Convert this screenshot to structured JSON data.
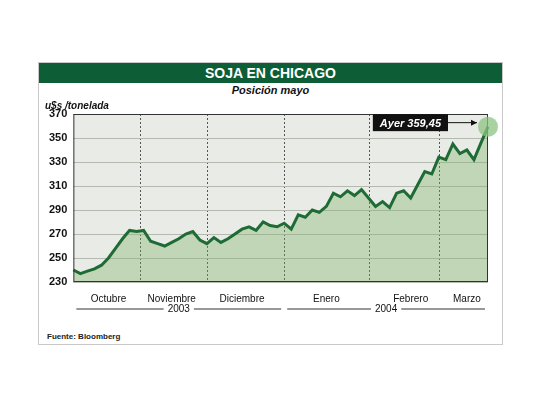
{
  "chart_data": {
    "type": "line",
    "title": "SOJA EN CHICAGO",
    "subtitle": "Posición mayo",
    "y_label": "u$s /tonelada",
    "source": "Fuente: Bloomberg",
    "categories": [
      null,
      null,
      null,
      null,
      null,
      "Octubre",
      null,
      null,
      null,
      null,
      null,
      null,
      null,
      null,
      "Noviembre",
      null,
      null,
      null,
      null,
      null,
      null,
      null,
      null,
      null,
      "Diciembre",
      null,
      null,
      null,
      null,
      null,
      null,
      null,
      null,
      null,
      null,
      null,
      "Enero",
      null,
      null,
      null,
      null,
      null,
      null,
      null,
      null,
      null,
      null,
      null,
      "Febrero",
      null,
      null,
      null,
      null,
      null,
      null,
      null,
      "Marzo",
      null,
      null,
      null
    ],
    "values": [
      240,
      237,
      239,
      241,
      244,
      250,
      258,
      266,
      273,
      272,
      273,
      264,
      262,
      260,
      263,
      266,
      270,
      272,
      265,
      262,
      267,
      263,
      266,
      270,
      274,
      276,
      273,
      280,
      277,
      276,
      279,
      274,
      286,
      284,
      290,
      288,
      293,
      304,
      301,
      306,
      302,
      307,
      300,
      293,
      297,
      292,
      304,
      306,
      300,
      311,
      322,
      320,
      334,
      332,
      345,
      337,
      340,
      332,
      346,
      359.45
    ],
    "color": "#1f6b35",
    "ylim": [
      230,
      370
    ],
    "yticks": [
      230,
      250,
      270,
      290,
      310,
      330,
      350,
      370
    ],
    "grid": true,
    "x_groups": [
      {
        "label": "2003",
        "from": "Octubre",
        "to": "Diciembre"
      },
      {
        "label": "2004",
        "from": "Enero",
        "to": "Marzo"
      }
    ],
    "annotations": [
      {
        "text": "Ayer 359,45",
        "value": 359.45
      }
    ]
  }
}
